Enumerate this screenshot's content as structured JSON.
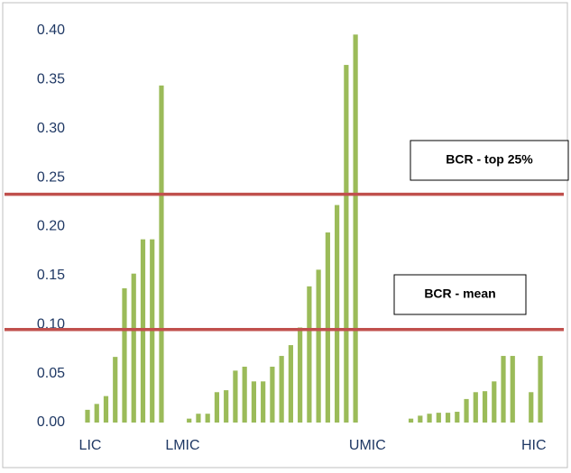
{
  "chart_data": {
    "type": "bar",
    "categories": [
      "LIC",
      null,
      null,
      null,
      null,
      null,
      null,
      null,
      null,
      null,
      "LMIC",
      null,
      null,
      null,
      null,
      null,
      null,
      null,
      null,
      null,
      null,
      null,
      null,
      null,
      null,
      null,
      null,
      null,
      null,
      null,
      "UMIC",
      null,
      null,
      null,
      null,
      null,
      null,
      null,
      null,
      null,
      null,
      null,
      null,
      null,
      null,
      null,
      null,
      null,
      "HIC",
      null
    ],
    "values": [
      0.013,
      0.019,
      0.027,
      0.067,
      0.137,
      0.152,
      0.187,
      0.187,
      0.344,
      0,
      0,
      0.004,
      0.009,
      0.009,
      0.031,
      0.033,
      0.053,
      0.057,
      0.042,
      0.042,
      0.057,
      0.068,
      0.079,
      0.097,
      0.139,
      0.156,
      0.194,
      0.222,
      0.365,
      0.396,
      0,
      0,
      0,
      0,
      0,
      0.004,
      0.007,
      0.009,
      0.01,
      0.01,
      0.011,
      0.024,
      0.031,
      0.032,
      0.042,
      0.068,
      0.068,
      0,
      0.031,
      0.068
    ],
    "color": "#9bbb59",
    "ylim": [
      0,
      0.4
    ],
    "yticks": [
      {
        "value": 0,
        "label": "0.00"
      },
      {
        "value": 0.05,
        "label": "0.05"
      },
      {
        "value": 0.1,
        "label": "0.10"
      },
      {
        "value": 0.15,
        "label": "0.15"
      },
      {
        "value": 0.2,
        "label": "0.20"
      },
      {
        "value": 0.25,
        "label": "0.25"
      },
      {
        "value": 0.3,
        "label": "0.30"
      },
      {
        "value": 0.35,
        "label": "0.35"
      },
      {
        "value": 0.4,
        "label": "0.40"
      }
    ],
    "reference_lines": [
      {
        "label": "BCR - top 25%",
        "value": 0.233,
        "color": "#c0504d"
      },
      {
        "label": "BCR - mean",
        "value": 0.095,
        "color": "#c0504d"
      }
    ]
  }
}
